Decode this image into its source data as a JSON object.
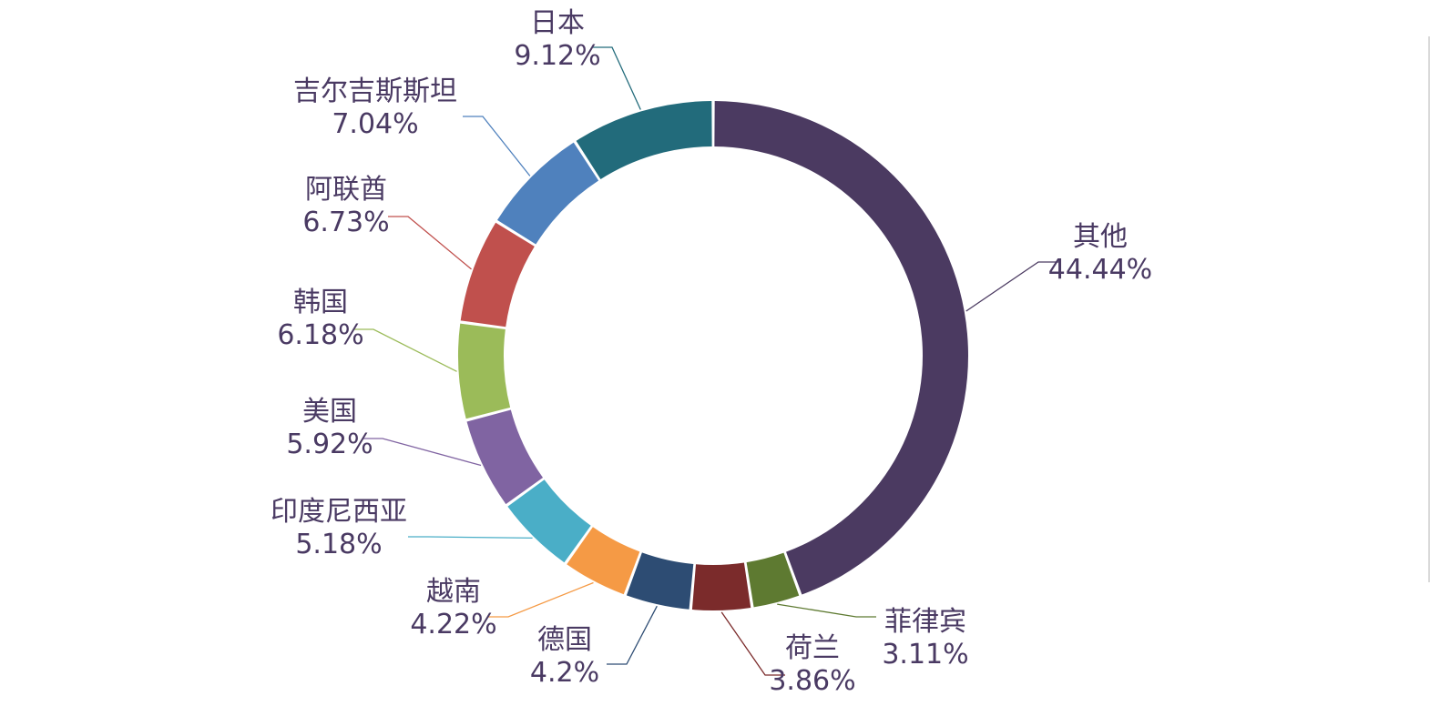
{
  "chart_data": {
    "type": "pie",
    "variant": "donut",
    "label_color": "#4a3a63",
    "slices": [
      {
        "label": "其他",
        "value": 44.44,
        "value_label": "44.44%",
        "color": "#4b3a61"
      },
      {
        "label": "菲律宾",
        "value": 3.11,
        "value_label": "3.11%",
        "color": "#5e7a31"
      },
      {
        "label": "荷兰",
        "value": 3.86,
        "value_label": "3.86%",
        "color": "#7b2b2b"
      },
      {
        "label": "德国",
        "value": 4.2,
        "value_label": "4.2%",
        "color": "#2d4c73"
      },
      {
        "label": "越南",
        "value": 4.22,
        "value_label": "4.22%",
        "color": "#f59a45"
      },
      {
        "label": "印度尼西亚",
        "value": 5.18,
        "value_label": "5.18%",
        "color": "#4aaec7"
      },
      {
        "label": "美国",
        "value": 5.92,
        "value_label": "5.92%",
        "color": "#8064a2"
      },
      {
        "label": "韩国",
        "value": 6.18,
        "value_label": "6.18%",
        "color": "#9bbb59"
      },
      {
        "label": "阿联酋",
        "value": 6.73,
        "value_label": "6.73%",
        "color": "#c0504d"
      },
      {
        "label": "吉尔吉斯斯坦",
        "value": 7.04,
        "value_label": "7.04%",
        "color": "#4f81bd"
      },
      {
        "label": "日本",
        "value": 9.12,
        "value_label": "9.12%",
        "color": "#226b7b"
      }
    ]
  }
}
